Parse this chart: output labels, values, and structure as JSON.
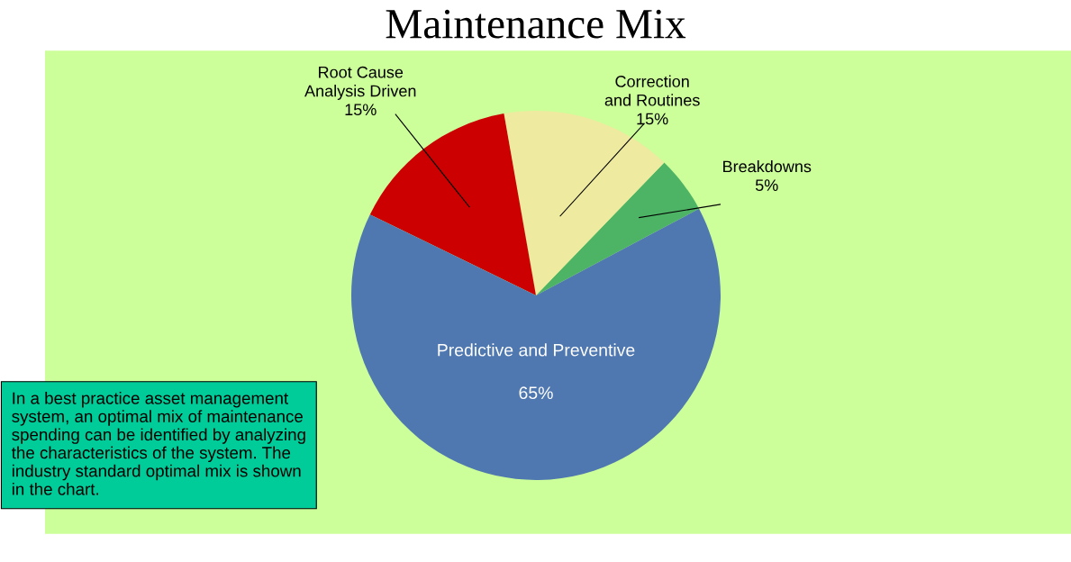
{
  "chart_data": {
    "type": "pie",
    "title": "Maintenance Mix",
    "categories": [
      "Breakdowns",
      "Correction\nand Routines",
      "Root Cause\nAnalysis Driven",
      "Predictive and Preventive"
    ],
    "values": [
      5,
      15,
      15,
      65
    ],
    "value_labels": [
      "5%",
      "15%",
      "15%",
      "65%"
    ],
    "colors": [
      "#4cb464",
      "#eeeaa0",
      "#cc0000",
      "#5078b0"
    ],
    "annotations": [
      "In a best practice asset management system, an optimal mix of maintenance spending can be identified by analyzing the characteristics of the system. The industry standard optimal mix is shown in the chart."
    ]
  }
}
